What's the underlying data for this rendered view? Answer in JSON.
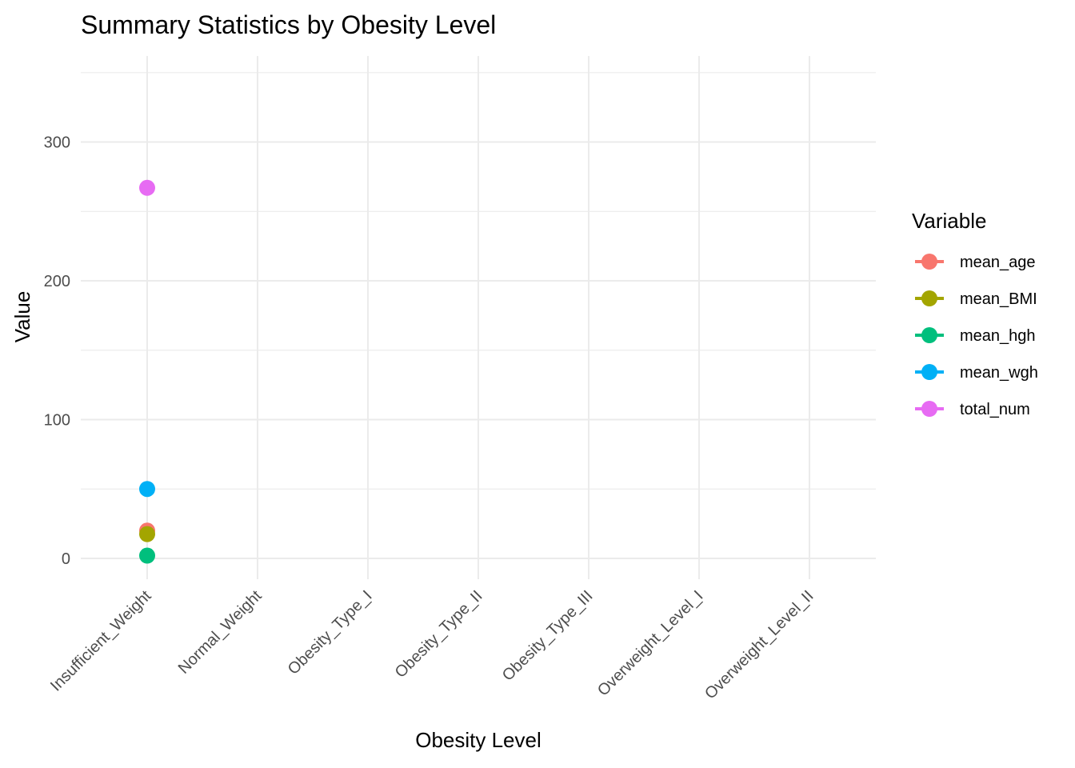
{
  "chart_data": {
    "type": "scatter",
    "title": "Summary Statistics by Obesity Level",
    "xlabel": "Obesity Level",
    "ylabel": "Value",
    "categories": [
      "Insufficient_Weight",
      "Normal_Weight",
      "Obesity_Type_I",
      "Obesity_Type_II",
      "Obesity_Type_III",
      "Overweight_Level_I",
      "Overweight_Level_II"
    ],
    "ylim": [
      -15,
      362
    ],
    "y_ticks": [
      0,
      100,
      200,
      300
    ],
    "grid": true,
    "legend": {
      "title": "Variable",
      "position": "right"
    },
    "series": [
      {
        "name": "mean_age",
        "color": "#F8766D",
        "values": [
          20,
          null,
          null,
          null,
          null,
          null,
          null
        ]
      },
      {
        "name": "mean_BMI",
        "color": "#A3A500",
        "values": [
          17.5,
          null,
          null,
          null,
          null,
          null,
          null
        ]
      },
      {
        "name": "mean_hgh",
        "color": "#00BF7D",
        "values": [
          2,
          null,
          null,
          null,
          null,
          null,
          null
        ]
      },
      {
        "name": "mean_wgh",
        "color": "#00B0F6",
        "values": [
          50,
          null,
          null,
          null,
          null,
          null,
          null
        ]
      },
      {
        "name": "total_num",
        "color": "#E76BF3",
        "values": [
          267,
          null,
          null,
          null,
          null,
          null,
          null
        ]
      }
    ]
  }
}
